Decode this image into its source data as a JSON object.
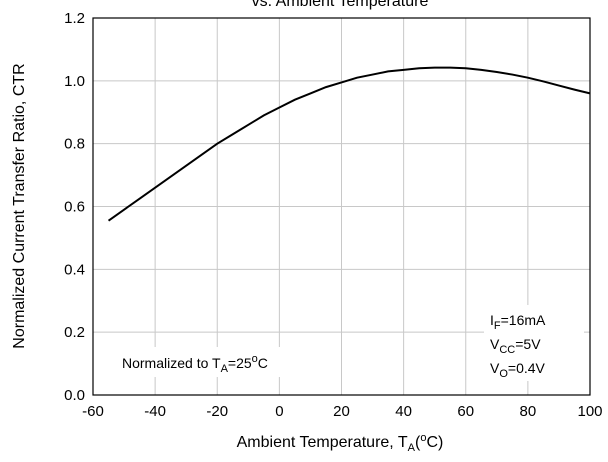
{
  "chart_data": {
    "type": "line",
    "title": "vs. Ambient Temperature",
    "x_label": [
      "Ambient Temperature, T",
      "A",
      "(",
      "o",
      "C)"
    ],
    "y_label": "Normalized Current Transfer Ratio, CTR",
    "x": [
      -55,
      -50,
      -45,
      -40,
      -35,
      -30,
      -25,
      -20,
      -15,
      -10,
      -5,
      0,
      5,
      10,
      15,
      20,
      25,
      30,
      35,
      40,
      45,
      50,
      55,
      60,
      65,
      70,
      75,
      80,
      85,
      90,
      95,
      100
    ],
    "series": [
      {
        "color": "#000000",
        "values": [
          0.555,
          0.59,
          0.625,
          0.66,
          0.695,
          0.73,
          0.765,
          0.8,
          0.83,
          0.86,
          0.89,
          0.915,
          0.94,
          0.96,
          0.98,
          0.995,
          1.01,
          1.02,
          1.03,
          1.035,
          1.04,
          1.042,
          1.042,
          1.04,
          1.035,
          1.028,
          1.02,
          1.01,
          0.998,
          0.985,
          0.972,
          0.96
        ]
      }
    ],
    "xlim": [
      -60,
      100
    ],
    "xticks": [
      -60,
      -40,
      -20,
      0,
      20,
      40,
      60,
      80,
      100
    ],
    "ylim": [
      0,
      1.2
    ],
    "yticks": [
      {
        "value": 0,
        "label": "0.0"
      },
      0.2,
      0.4,
      0.6,
      0.8,
      {
        "value": 1,
        "label": "1.0"
      },
      1.2
    ],
    "grid": true,
    "annotations": {
      "normalized": [
        "Normalized to T",
        "A",
        "=25",
        "o",
        "C"
      ],
      "conditions": [
        [
          "I",
          "F",
          "=16mA"
        ],
        [
          "V",
          "CC",
          "=5V"
        ],
        [
          "V",
          "O",
          "=0.4V"
        ]
      ]
    }
  }
}
